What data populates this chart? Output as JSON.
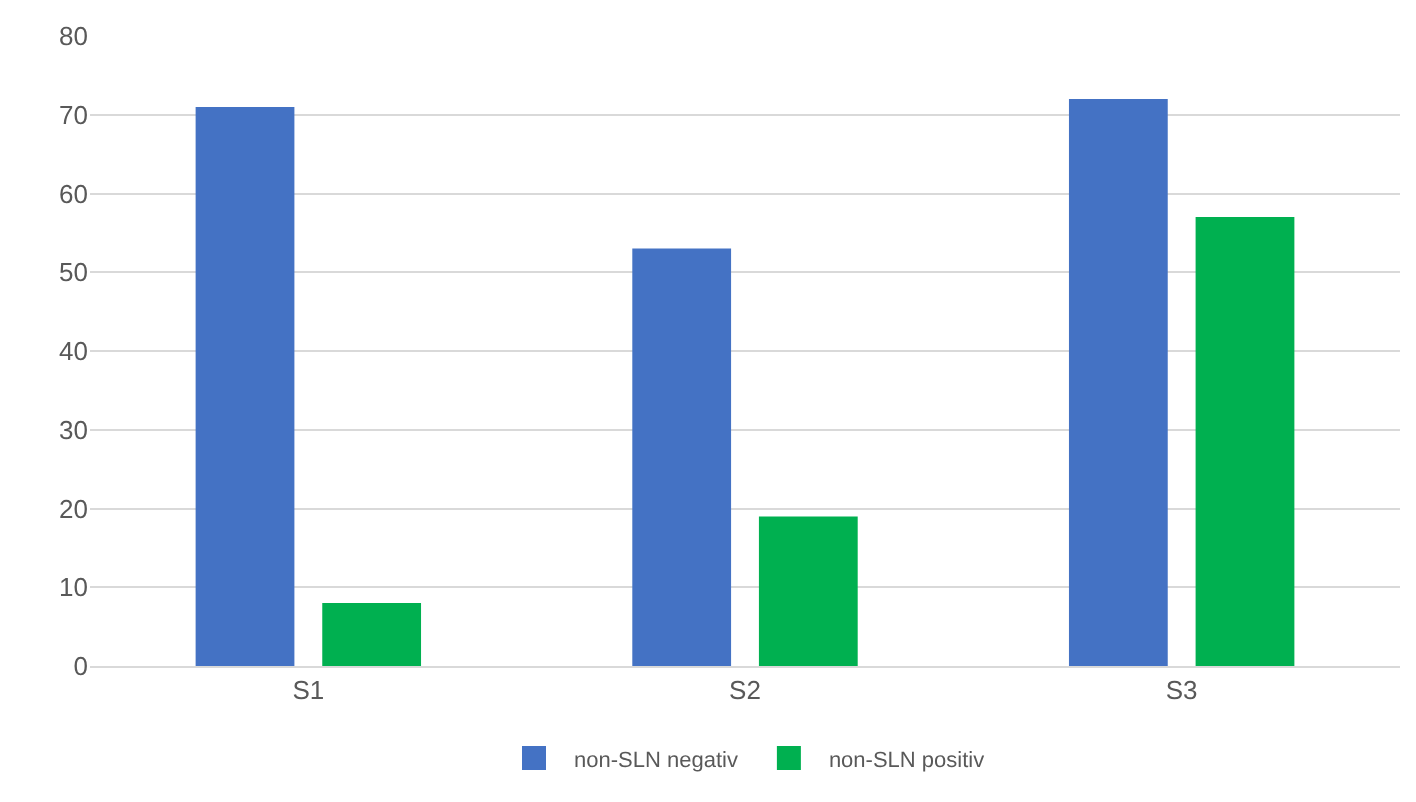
{
  "chart_data": {
    "type": "bar",
    "categories": [
      "S1",
      "S2",
      "S3"
    ],
    "series": [
      {
        "name": "non-SLN negativ",
        "color": "#4472c4",
        "values": [
          71,
          53,
          72
        ]
      },
      {
        "name": "non-SLN positiv",
        "color": "#00b050",
        "values": [
          8,
          19,
          57
        ]
      }
    ],
    "ylim": [
      0,
      80
    ],
    "yticks": [
      0,
      10,
      20,
      30,
      40,
      50,
      60,
      70,
      80
    ],
    "grid": "y",
    "legend": "bottom"
  }
}
